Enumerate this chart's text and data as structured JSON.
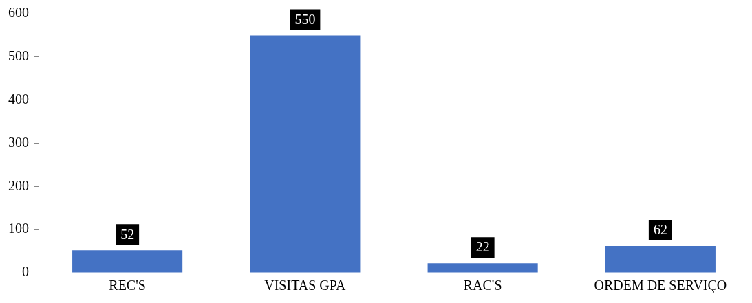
{
  "chart_data": {
    "type": "bar",
    "categories": [
      "REC'S",
      "VISITAS GPA",
      "RAC'S",
      "ORDEM DE SERVIÇO"
    ],
    "values": [
      52,
      550,
      22,
      62
    ],
    "color": "#4472c4",
    "ylim": [
      0,
      600
    ],
    "yticks": [
      0,
      100,
      200,
      300,
      400,
      500,
      600
    ],
    "grid": false,
    "legend": false,
    "data_labels": true
  }
}
